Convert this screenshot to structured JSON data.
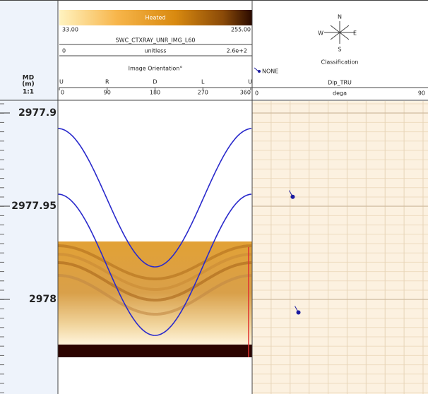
{
  "depth_track": {
    "header": [
      "MD",
      "(m)",
      "1:1"
    ],
    "depth_ticks": [
      2977.9,
      2977.95,
      2978
    ]
  },
  "image_track": {
    "colorbar_label": "Heated",
    "colorbar_min": "33.00",
    "colorbar_max": "255.00",
    "curve_name": "SWC_CTXRAY_UNR_IMG_L60",
    "scale_min": "0",
    "unit": "unitless",
    "scale_max": "2.6e+2",
    "orientation_title": "Image Orientation°",
    "orientation_letters": [
      "U",
      "R",
      "D",
      "L",
      "U"
    ],
    "orientation_ticks": [
      "0",
      "90",
      "180",
      "270",
      "360"
    ]
  },
  "dip_track": {
    "compass": [
      "N",
      "W",
      "E",
      "S"
    ],
    "classification_title": "Classification",
    "legend": "NONE",
    "curve_name": "Dip_TRU",
    "scale_min": "0",
    "unit": "dega",
    "scale_max": "90",
    "tadpoles": [
      {
        "depth": 2977.945,
        "dip": 21
      },
      {
        "depth": 2978.007,
        "dip": 24
      }
    ]
  }
}
